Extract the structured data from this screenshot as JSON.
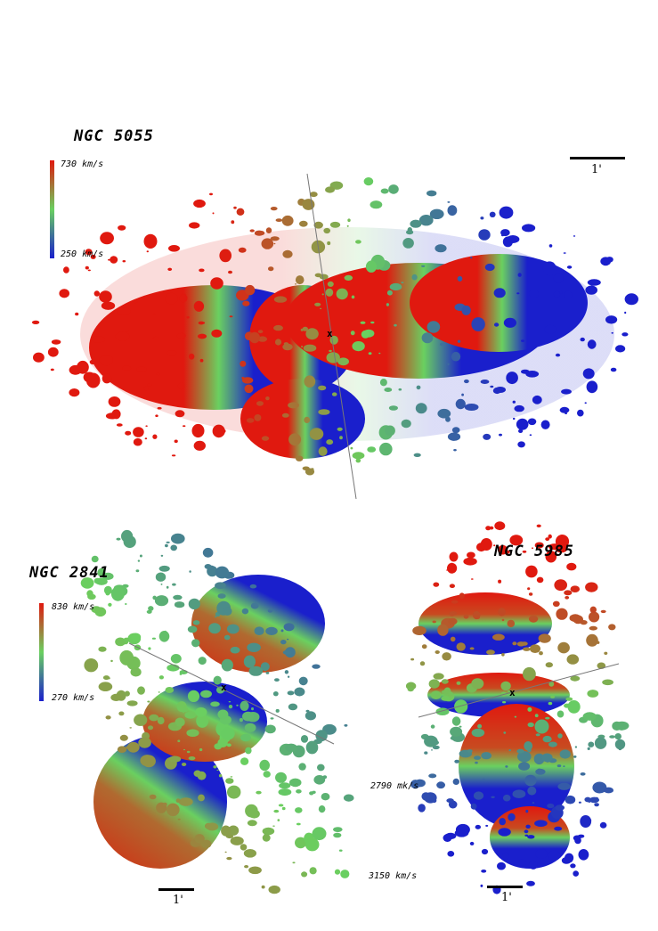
{
  "figure": {
    "panels": [
      {
        "id": "ngc5055",
        "galaxy_name": "NGC 5055",
        "colorbar_top_label": "730 km/s",
        "colorbar_bottom_label": "250 km/s",
        "scale_label": "1'",
        "center_marker": "x",
        "colors": {
          "high": "#e0190f",
          "mid": "#6ad060",
          "low": "#1a1fcc"
        }
      },
      {
        "id": "ngc2841",
        "galaxy_name": "NGC 2841",
        "colorbar_top_label": "830 km/s",
        "colorbar_bottom_label": "270 km/s",
        "scale_label": "1'",
        "center_marker": "x",
        "colors": {
          "high": "#e0190f",
          "mid": "#6ad060",
          "low": "#1a1fcc"
        }
      },
      {
        "id": "ngc5985",
        "galaxy_name": "NGC 5985",
        "colorbar_top_label": "2790 mk/s",
        "colorbar_bottom_label": "3150 km/s",
        "scale_label": "1'",
        "center_marker": "x",
        "colors": {
          "high": "#e0190f",
          "mid": "#6ad060",
          "low": "#1a1fcc"
        }
      }
    ]
  }
}
